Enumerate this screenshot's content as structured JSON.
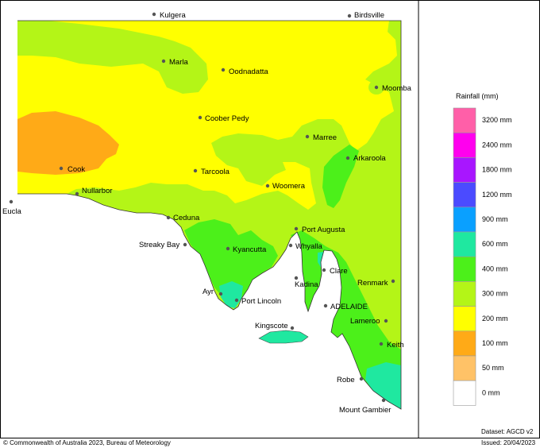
{
  "map": {
    "places": [
      {
        "id": "kulgera",
        "name": "Kulgera"
      },
      {
        "id": "birdsville",
        "name": "Birdsville"
      },
      {
        "id": "marla",
        "name": "Marla"
      },
      {
        "id": "oodnadatta",
        "name": "Oodnadatta"
      },
      {
        "id": "moomba",
        "name": "Moomba"
      },
      {
        "id": "coober-pedy",
        "name": "Coober Pedy"
      },
      {
        "id": "marree",
        "name": "Marree"
      },
      {
        "id": "arkaroola",
        "name": "Arkaroola"
      },
      {
        "id": "cook",
        "name": "Cook"
      },
      {
        "id": "tarcoola",
        "name": "Tarcoola"
      },
      {
        "id": "woomera",
        "name": "Woomera"
      },
      {
        "id": "nullarbor",
        "name": "Nullarbor"
      },
      {
        "id": "eucla",
        "name": "Eucla"
      },
      {
        "id": "ceduna",
        "name": "Ceduna"
      },
      {
        "id": "port-augusta",
        "name": "Port Augusta"
      },
      {
        "id": "streaky-bay",
        "name": "Streaky Bay"
      },
      {
        "id": "kyancutta",
        "name": "Kyancutta"
      },
      {
        "id": "whyalla",
        "name": "Whyalla"
      },
      {
        "id": "clare",
        "name": "Clare"
      },
      {
        "id": "kadina",
        "name": "Kadina"
      },
      {
        "id": "renmark",
        "name": "Renmark"
      },
      {
        "id": "ayr",
        "name": "Ayr"
      },
      {
        "id": "port-lincoln",
        "name": "Port Lincoln"
      },
      {
        "id": "adelaide",
        "name": "ADELAIDE"
      },
      {
        "id": "kingscote",
        "name": "Kingscote"
      },
      {
        "id": "lameroo",
        "name": "Lameroo"
      },
      {
        "id": "keith",
        "name": "Keith"
      },
      {
        "id": "robe",
        "name": "Robe"
      },
      {
        "id": "mount-gambier",
        "name": "Mount Gambier"
      }
    ]
  },
  "legend": {
    "title": "Rainfall (mm)",
    "bins": [
      {
        "label": "3200 mm",
        "color": "#ff5fa8"
      },
      {
        "label": "2400 mm",
        "color": "#ff00ee"
      },
      {
        "label": "1800 mm",
        "color": "#a816ff"
      },
      {
        "label": "1200 mm",
        "color": "#4b4bff"
      },
      {
        "label": "900 mm",
        "color": "#0aa0ff"
      },
      {
        "label": "600 mm",
        "color": "#1fe8a0"
      },
      {
        "label": "400 mm",
        "color": "#4cf01a"
      },
      {
        "label": "300 mm",
        "color": "#b4f517"
      },
      {
        "label": "200 mm",
        "color": "#ffff00"
      },
      {
        "label": "100 mm",
        "color": "#ffaa17"
      },
      {
        "label": "50 mm",
        "color": "#ffc267"
      },
      {
        "label": "0 mm",
        "color": "#ffffff"
      }
    ]
  },
  "colors": {
    "c300": "#b4f517",
    "c200": "#ffff00",
    "c100": "#ffaa17",
    "c400": "#4cf01a",
    "c600": "#1fe8a0",
    "ocean": "#ffffff"
  },
  "footer": {
    "copyright": "© Commonwealth of Australia 2023, Bureau of Meteorology",
    "dataset": "Dataset: AGCD v2",
    "issued": "Issued: 20/04/2023"
  }
}
